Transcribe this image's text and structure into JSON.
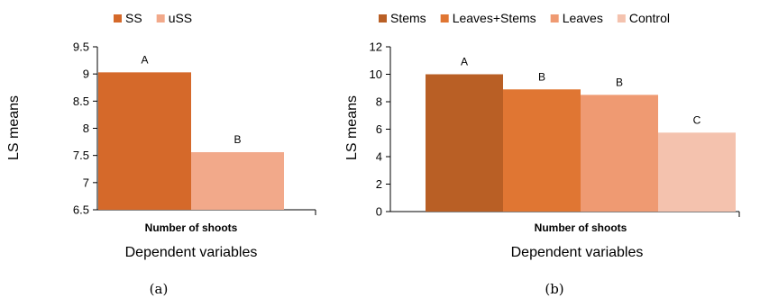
{
  "chart_data": [
    {
      "type": "bar",
      "panel_label": "(a)",
      "categories": [
        "Number of shoots"
      ],
      "xlabel": "Dependent variables",
      "ylabel": "LS means",
      "ylim": [
        6.5,
        9.5
      ],
      "yticks": [
        "6.5",
        "7",
        "7.5",
        "8",
        "8.5",
        "9",
        "9.5"
      ],
      "legend_position": "top",
      "series": [
        {
          "name": "SS",
          "values": [
            9.03
          ],
          "group_label": "A",
          "color": "#D5692A"
        },
        {
          "name": "uSS",
          "values": [
            7.56
          ],
          "group_label": "B",
          "color": "#F2A98A"
        }
      ]
    },
    {
      "type": "bar",
      "panel_label": "(b)",
      "categories": [
        "Number of shoots"
      ],
      "xlabel": "Dependent variables",
      "ylabel": "LS means",
      "ylim": [
        0,
        12
      ],
      "yticks": [
        "0",
        "2",
        "4",
        "6",
        "8",
        "10",
        "12"
      ],
      "legend_position": "top",
      "series": [
        {
          "name": "Stems",
          "values": [
            10.0
          ],
          "group_label": "A",
          "color": "#B95F25"
        },
        {
          "name": "Leaves+Stems",
          "values": [
            8.9
          ],
          "group_label": "B",
          "color": "#E07633"
        },
        {
          "name": "Leaves",
          "values": [
            8.5
          ],
          "group_label": "B",
          "color": "#EF9A72"
        },
        {
          "name": "Control",
          "values": [
            5.75
          ],
          "group_label": "C",
          "color": "#F4C2AE"
        }
      ]
    }
  ]
}
